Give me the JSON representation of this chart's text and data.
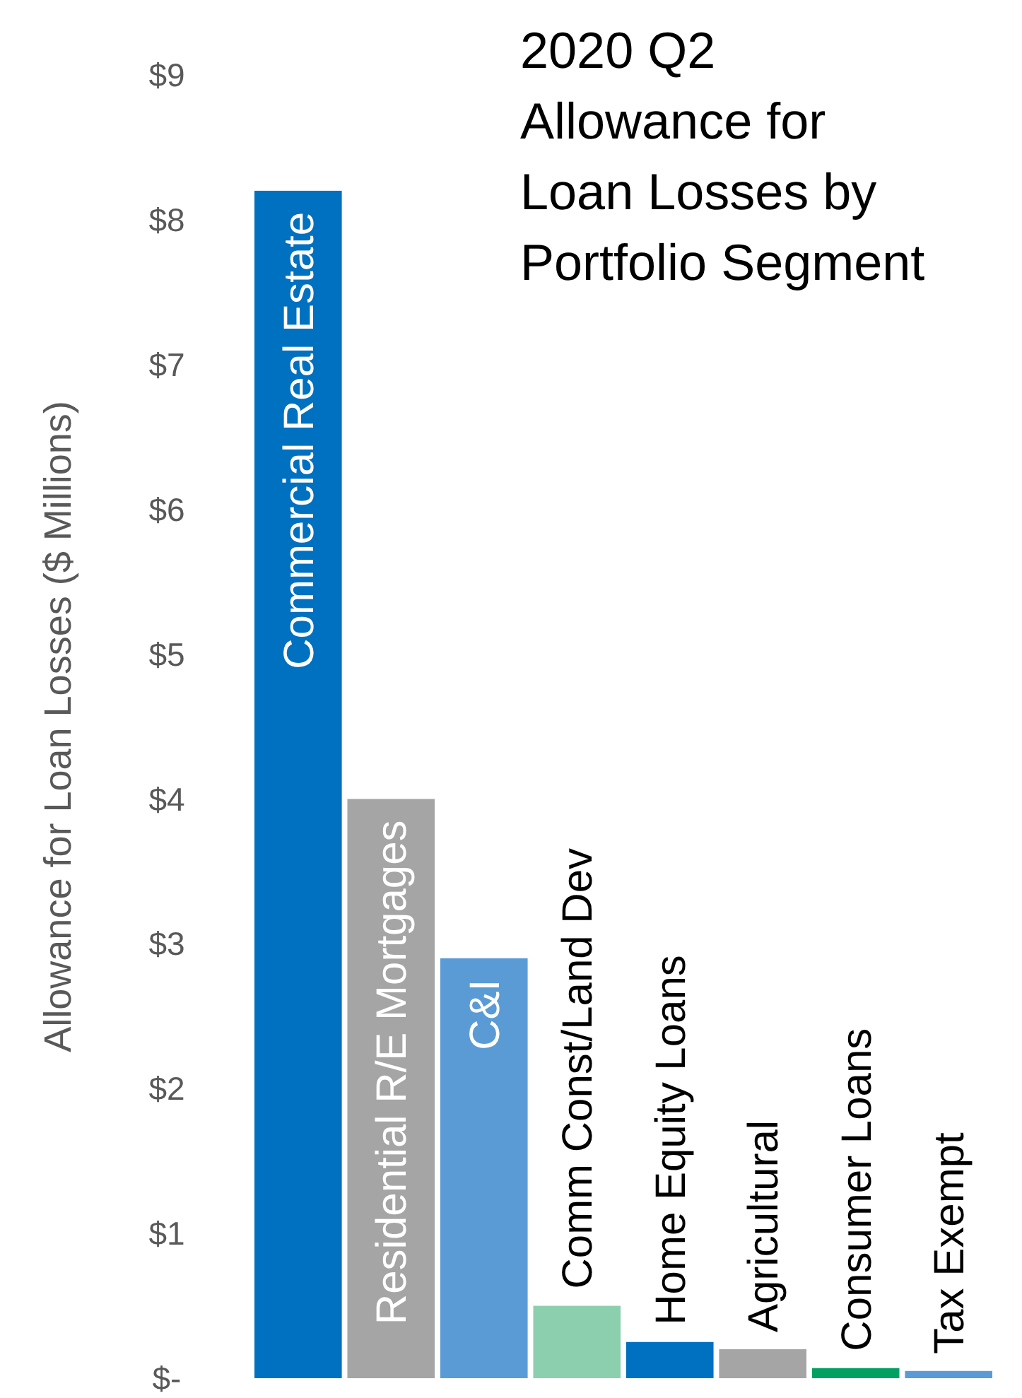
{
  "chart_data": {
    "type": "bar",
    "title": "2020 Q2 Allowance for Loan Losses by Portfolio Segment",
    "ylabel": "Allowance for Loan Losses ($ Millions)",
    "categories": [
      "Commercial Real Estate",
      "Residential R/E Mortgages",
      "C&I",
      "Comm  Const/Land Dev",
      "Home Equity Loans",
      "Agricultural",
      "Consumer Loans",
      "Tax Exempt"
    ],
    "values": [
      8.2,
      4.0,
      2.9,
      0.5,
      0.25,
      0.2,
      0.07,
      0.05
    ],
    "colors": [
      "#0070c0",
      "#a5a5a5",
      "#5b9bd5",
      "#8ccfae",
      "#0070c0",
      "#a5a5a5",
      "#00a060",
      "#5b9bd5"
    ],
    "ylim": [
      0,
      9
    ],
    "yticks": [
      {
        "value": 0,
        "label": "$-"
      },
      {
        "value": 1,
        "label": "$1"
      },
      {
        "value": 2,
        "label": "$2"
      },
      {
        "value": 3,
        "label": "$3"
      },
      {
        "value": 4,
        "label": "$4"
      },
      {
        "value": 5,
        "label": "$5"
      },
      {
        "value": 6,
        "label": "$6"
      },
      {
        "value": 7,
        "label": "$7"
      },
      {
        "value": 8,
        "label": "$8"
      },
      {
        "value": 9,
        "label": "$9"
      }
    ],
    "grid": false
  }
}
